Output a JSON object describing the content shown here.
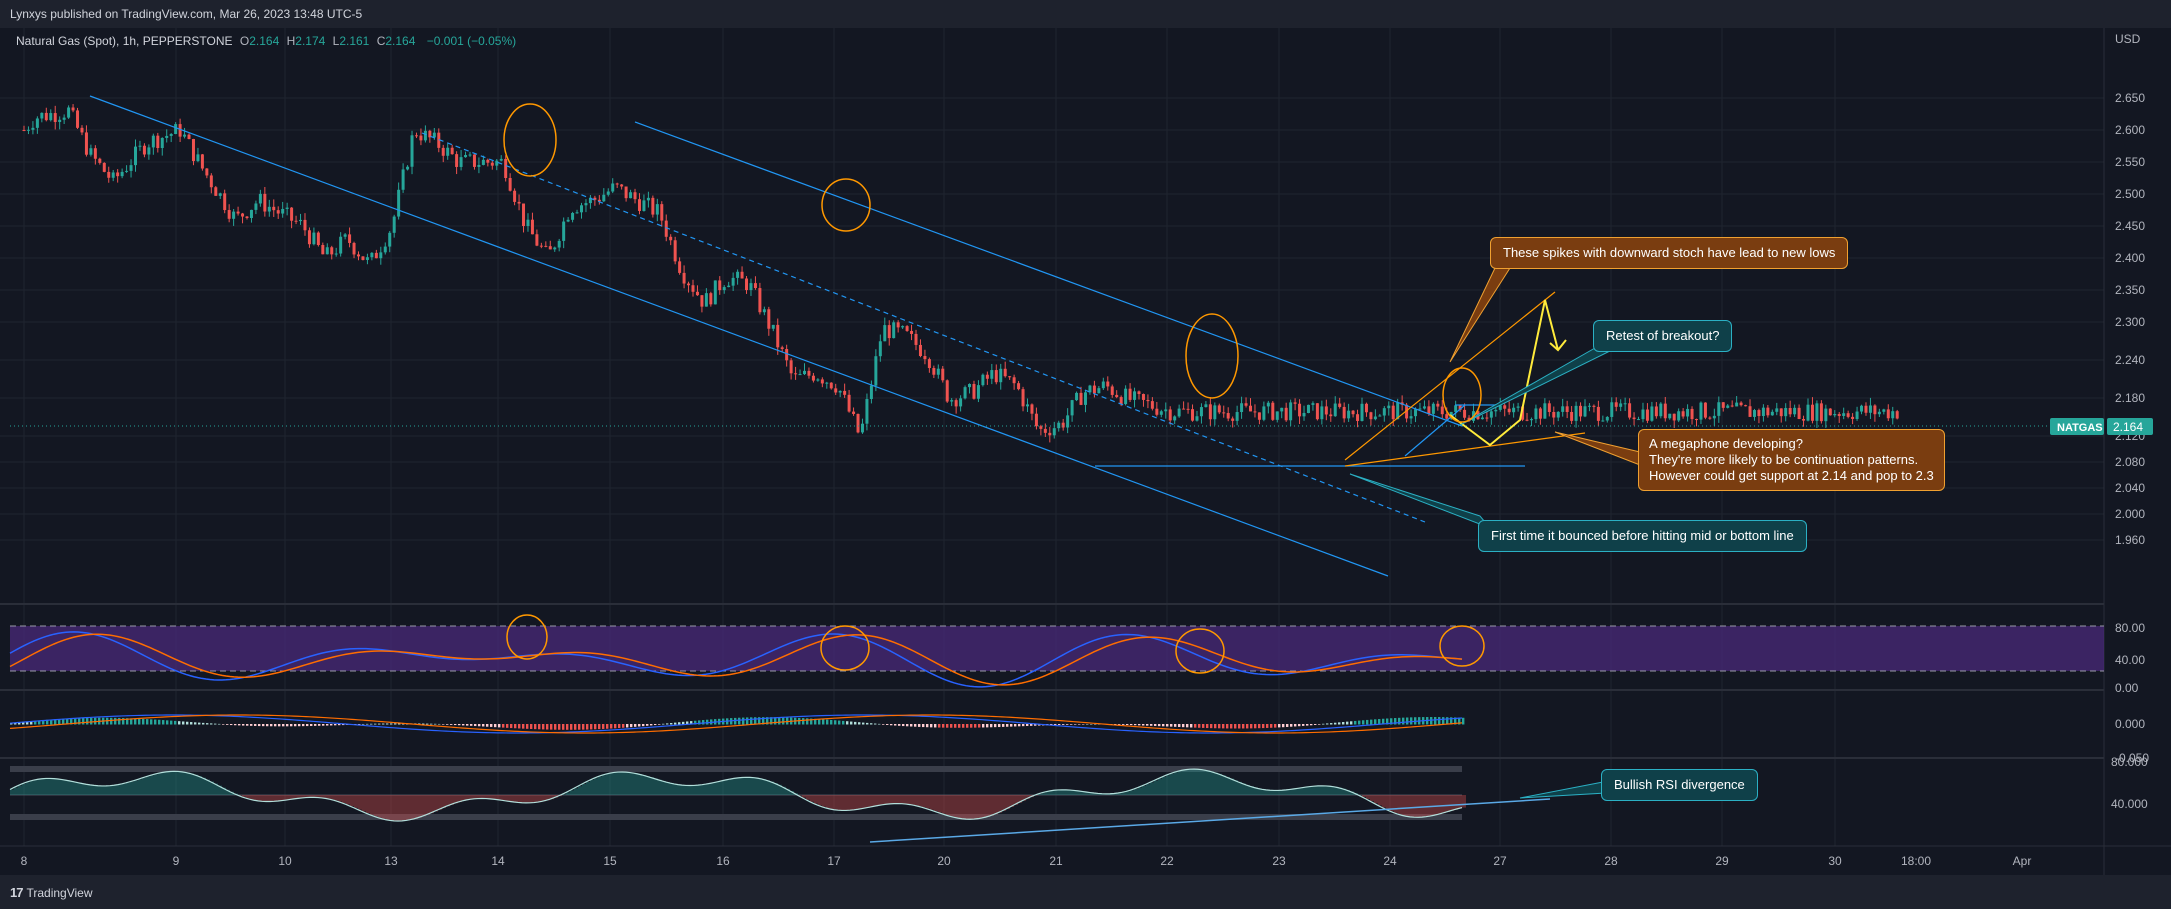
{
  "header": {
    "published": "Lynxys published on TradingView.com, Mar 26, 2023 13:48 UTC-5"
  },
  "legend": {
    "symbol": "Natural Gas (Spot), 1h, PEPPERSTONE",
    "o_label": "O",
    "o": "2.164",
    "h_label": "H",
    "h": "2.174",
    "l_label": "L",
    "l": "2.161",
    "c_label": "C",
    "c": "2.164",
    "change": "−0.001 (−0.05%)"
  },
  "price_axis": {
    "currency": "USD",
    "ticks": [
      "2.650",
      "2.600",
      "2.550",
      "2.500",
      "2.450",
      "2.400",
      "2.350",
      "2.300",
      "2.240",
      "2.180",
      "2.120",
      "2.080",
      "2.040",
      "2.000",
      "1.960"
    ],
    "symbol_tag": "NATGAS",
    "last_price": "2.164"
  },
  "stoch_axis": {
    "ticks": [
      "80.00",
      "40.00",
      "0.00"
    ]
  },
  "macd_axis": {
    "ticks": [
      "0.000",
      "-0.050"
    ]
  },
  "rsi_axis": {
    "ticks": [
      "80.000",
      "40.000"
    ]
  },
  "time_axis": {
    "ticks": [
      "8",
      "9",
      "10",
      "13",
      "14",
      "15",
      "16",
      "17",
      "20",
      "21",
      "22",
      "23",
      "24",
      "27",
      "28",
      "29",
      "30",
      "18:00",
      "Apr"
    ]
  },
  "callouts": {
    "spikes": "These spikes with downward stoch have lead to new lows",
    "retest": "Retest of breakout?",
    "megaphone_1": "A megaphone developing?",
    "megaphone_2": "They're more likely to be continuation patterns.",
    "megaphone_3": "However could get support at 2.14 and pop to 2.3",
    "first_time": "First time it bounced before hitting mid or bottom line",
    "bullish_rsi": "Bullish RSI divergence"
  },
  "footer": {
    "brand": "TradingView"
  },
  "colors": {
    "background": "#131722",
    "up": "#26a69a",
    "down": "#ef5350",
    "channel": "#2196f3",
    "annotation_orange": "#ff9800",
    "annotation_yellow": "#ffeb3b",
    "stoch_band": "#4a2a7a"
  },
  "chart_data": {
    "type": "candlestick",
    "symbol": "NATGAS",
    "timeframe": "1h",
    "x_dates": [
      "Mar 8",
      "Mar 9",
      "Mar 10",
      "Mar 13",
      "Mar 14",
      "Mar 15",
      "Mar 16",
      "Mar 17",
      "Mar 20",
      "Mar 21",
      "Mar 22",
      "Mar 23",
      "Mar 24"
    ],
    "close_path": {
      "x": [
        7.9,
        8.0,
        8.3,
        8.5,
        8.7,
        9.0,
        9.3,
        9.5,
        9.8,
        10.0,
        10.2,
        10.4,
        10.6,
        10.8,
        11.0,
        11.2,
        11.4,
        11.6,
        11.8,
        12.0,
        12.2,
        12.4,
        12.6,
        12.8,
        13.0,
        13.2,
        13.4,
        13.6,
        13.8,
        14.0,
        14.2,
        14.4,
        14.6,
        14.8,
        15.0,
        15.2,
        15.4,
        15.6,
        15.8,
        16.0,
        16.2,
        16.4,
        16.6,
        16.8,
        17.0,
        17.2,
        17.4,
        17.6,
        17.8,
        18.0,
        18.2,
        18.4,
        18.6,
        18.8,
        19.0,
        19.2,
        19.4,
        19.6,
        19.8,
        20.0,
        20.2,
        20.4
      ],
      "y": [
        2.6,
        2.62,
        2.63,
        2.56,
        2.52,
        2.58,
        2.6,
        2.54,
        2.46,
        2.49,
        2.47,
        2.45,
        2.4,
        2.43,
        2.39,
        2.45,
        2.6,
        2.58,
        2.55,
        2.55,
        2.55,
        2.45,
        2.4,
        2.48,
        2.49,
        2.51,
        2.49,
        2.47,
        2.38,
        2.33,
        2.37,
        2.36,
        2.29,
        2.21,
        2.22,
        2.2,
        2.12,
        2.29,
        2.28,
        2.25,
        2.18,
        2.19,
        2.22,
        2.2,
        2.13,
        2.14,
        2.19,
        2.2,
        2.18,
        2.17,
        2.16,
        2.16,
        2.16,
        2.16,
        2.16,
        2.16,
        2.16,
        2.16,
        2.16,
        2.16,
        2.16,
        2.16
      ]
    },
    "last": {
      "open": 2.164,
      "high": 2.174,
      "low": 2.161,
      "close": 2.164,
      "change": -0.001,
      "change_pct": -0.05
    },
    "y_range": [
      1.94,
      2.68
    ],
    "indicators": [
      "Stochastic RSI (band 20-80)",
      "MACD",
      "RSI with divergence"
    ]
  }
}
